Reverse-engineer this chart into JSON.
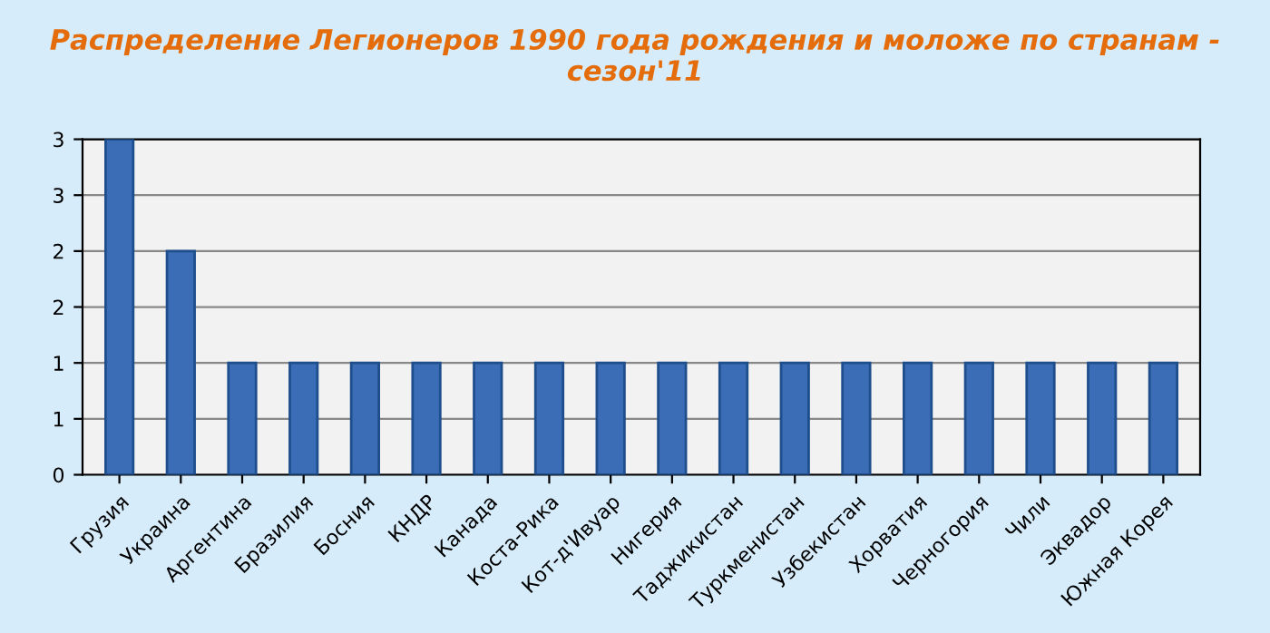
{
  "chart_data": {
    "type": "bar",
    "title": "Распределение Легионеров 1990 года рождения и моложе по странам - сезон'11",
    "categories": [
      "Грузия",
      "Украина",
      "Аргентина",
      "Бразилия",
      "Босния",
      "КНДР",
      "Канада",
      "Коста-Рика",
      "Кот-д'Ивуар",
      "Нигерия",
      "Таджикистан",
      "Туркменистан",
      "Узбекистан",
      "Хорватия",
      "Черногория",
      "Чили",
      "Эквадор",
      "Южная Корея"
    ],
    "values": [
      3,
      2,
      1,
      1,
      1,
      1,
      1,
      1,
      1,
      1,
      1,
      1,
      1,
      1,
      1,
      1,
      1,
      1
    ],
    "color": "#3a6db5",
    "ylim": [
      0,
      3
    ],
    "yticks": [
      0,
      {
        "value": 0.5,
        "label": "1"
      },
      1,
      {
        "value": 1.5,
        "label": "2"
      },
      2,
      {
        "value": 2.5,
        "label": "3"
      },
      3
    ],
    "grid": "y"
  }
}
